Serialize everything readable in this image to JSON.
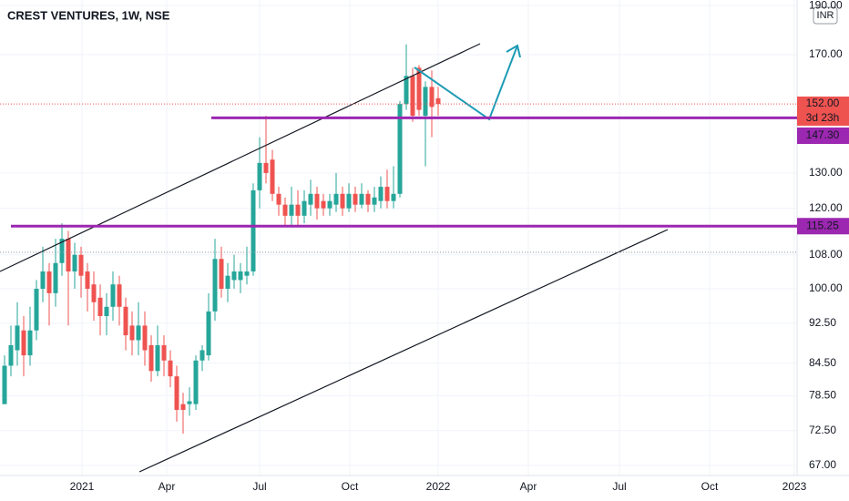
{
  "chart_data": {
    "type": "candlestick",
    "title": "CREST VENTURES, 1W, NSE",
    "currency": "INR",
    "log_scale": true,
    "ylim": [
      65.5,
      192.4
    ],
    "yticks": [
      {
        "value": 67,
        "label": "67.00"
      },
      {
        "value": 72.5,
        "label": "72.50"
      },
      {
        "value": 78.5,
        "label": "78.50"
      },
      {
        "value": 84.5,
        "label": "84.50"
      },
      {
        "value": 92.5,
        "label": "92.50"
      },
      {
        "value": 100,
        "label": "100.00"
      },
      {
        "value": 108,
        "label": "108.00"
      },
      {
        "value": 120,
        "label": "120.00"
      },
      {
        "value": 130,
        "label": "130.00"
      },
      {
        "value": 170,
        "label": "170.00"
      },
      {
        "value": 190,
        "label": "190.00"
      }
    ],
    "x_labels": [
      "2021",
      "Apr",
      "Jul",
      "Oct",
      "2022",
      "Apr",
      "Jul",
      "Oct",
      "2023"
    ],
    "open": [
      77,
      84,
      87,
      91,
      86,
      91,
      100,
      104,
      99,
      106,
      112,
      104,
      108,
      104,
      101,
      98,
      94,
      96,
      101,
      96,
      92,
      89,
      92,
      88,
      83,
      88,
      85,
      82,
      77,
      77,
      77,
      85,
      86,
      95,
      107,
      100,
      102,
      102,
      103,
      104,
      125,
      133,
      134,
      124,
      121,
      118,
      121,
      118,
      121,
      124,
      122,
      120,
      121,
      124,
      120,
      124,
      121,
      124,
      121,
      122,
      126,
      122,
      124,
      152,
      162,
      165,
      148,
      158,
      154
    ],
    "high": [
      86,
      92,
      97,
      94,
      96,
      102,
      110,
      106,
      112,
      116,
      114,
      111,
      110,
      106,
      104,
      101,
      99,
      104,
      103,
      98,
      95,
      97,
      95,
      90,
      92,
      90,
      87,
      84,
      79,
      80,
      86,
      88,
      99,
      112,
      110,
      106,
      108,
      106,
      110,
      127,
      141,
      148,
      137,
      126,
      123,
      126,
      125,
      125,
      128,
      126,
      124,
      124,
      130,
      126,
      127,
      126,
      127,
      125,
      126,
      129,
      131,
      132,
      153,
      174,
      165,
      166,
      160,
      164,
      158
    ],
    "low": [
      77,
      82,
      84,
      82,
      84,
      89,
      97,
      92,
      96,
      103,
      92,
      100,
      98,
      95,
      93,
      90,
      90,
      93,
      92,
      87,
      86,
      86,
      84,
      81,
      82,
      82,
      80,
      74,
      72,
      75,
      76,
      83,
      85,
      93,
      98,
      97,
      100,
      99,
      101,
      103,
      120,
      127,
      122,
      118,
      115,
      115,
      115,
      116,
      118,
      117,
      118,
      118,
      119,
      118,
      119,
      119,
      120,
      119,
      119,
      120,
      120,
      120,
      123,
      150,
      146,
      148,
      132,
      141,
      148
    ],
    "close": [
      84,
      88,
      92,
      86,
      91,
      100,
      104,
      99,
      106,
      112,
      104,
      108,
      103,
      100,
      97,
      94,
      96,
      101,
      96,
      90,
      89,
      92,
      87,
      83,
      88,
      85,
      82,
      76,
      76,
      77.5,
      85,
      87,
      95,
      107,
      100,
      103,
      104,
      104,
      104,
      125,
      133,
      130,
      124,
      121,
      118,
      121,
      118,
      122,
      124,
      120,
      120,
      122,
      124,
      120,
      124,
      121,
      124,
      121,
      123,
      126,
      122,
      124,
      152,
      162,
      148,
      150,
      158,
      151,
      152
    ],
    "up_color": "#26a69a",
    "down_color": "#ef5350",
    "last_price": {
      "value": 152,
      "label": "152.00"
    },
    "countdown": "3d 23h",
    "levels": [
      {
        "value": 147.3,
        "label": "147.30"
      },
      {
        "value": 115.25,
        "label": "115.25"
      }
    ],
    "level_color": "#9c27b0"
  }
}
